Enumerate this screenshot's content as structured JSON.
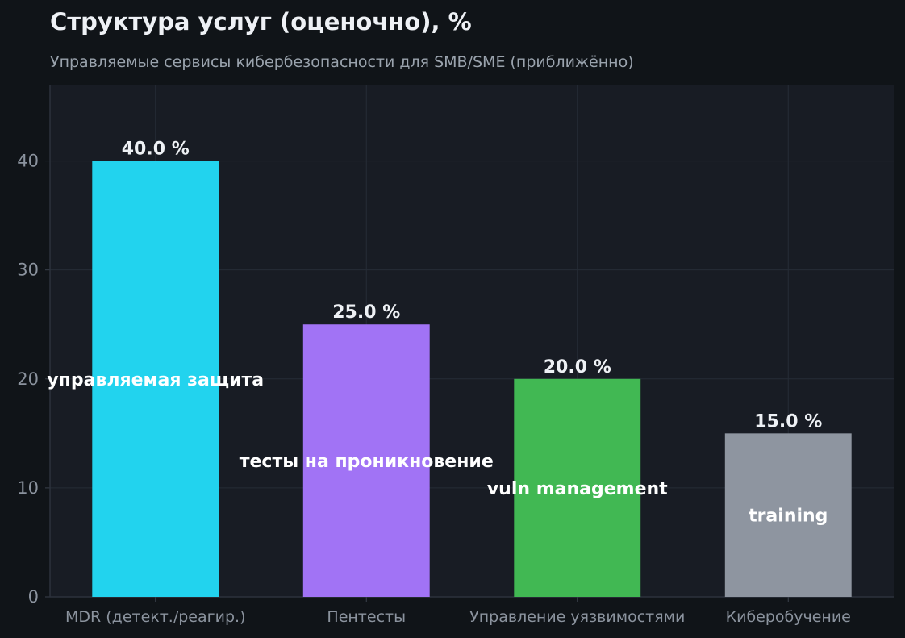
{
  "header": {
    "title": "Структура услуг (оценочно), %",
    "subtitle": "Управляемые сервисы кибербезопасности для SMB/SME (приближённо)"
  },
  "colors": {
    "page_background": "#101418",
    "plot_background": "#181c24",
    "grid": "#262c36",
    "axis_text": "#8b939e",
    "value_label": "#eef1f5",
    "inner_label": "#ffffff"
  },
  "chart_data": {
    "type": "bar",
    "title": "Структура услуг (оценочно), %",
    "subtitle": "Управляемые сервисы кибербезопасности для SMB/SME (приближённо)",
    "xlabel": "",
    "ylabel": "",
    "ylim": [
      0,
      47
    ],
    "yticks": [
      0,
      10,
      20,
      30,
      40
    ],
    "grid": true,
    "legend": "none",
    "categories": [
      "MDR (детект./реагир.)",
      "Пентесты",
      "Управление уязвимостями",
      "Киберобучение"
    ],
    "values": [
      40.0,
      25.0,
      20.0,
      15.0
    ],
    "value_labels": [
      "40.0 %",
      "25.0 %",
      "20.0 %",
      "15.0 %"
    ],
    "inner_labels": [
      "управляемая защита",
      "тесты на проникновение",
      "vuln management",
      "training"
    ],
    "bar_colors": [
      "#22d3ee",
      "#a173f5",
      "#41b853",
      "#8e95a0"
    ]
  }
}
